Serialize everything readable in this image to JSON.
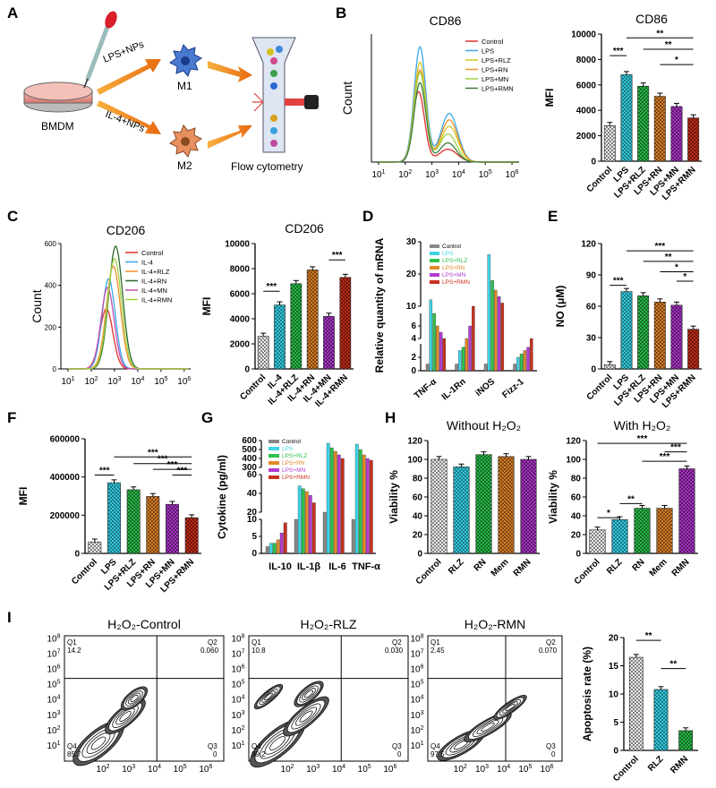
{
  "panels": {
    "A": "A",
    "B": "B",
    "C": "C",
    "D": "D",
    "E": "E",
    "F": "F",
    "G": "G",
    "H": "H",
    "I": "I"
  },
  "schematic": {
    "source": "BMDM",
    "route1": "LPS+NPs",
    "route2": "IL-4+NPs",
    "cell1": "M1",
    "cell2": "M2",
    "readout": "Flow cytometry"
  },
  "colors": {
    "control": "#888888",
    "lps": "#3fd4e6",
    "rlz": "#2ec24e",
    "rn": "#e08a2a",
    "mn": "#b43cd0",
    "rmn": "#c8321e",
    "flowRed": "#e0302a",
    "flowBlue": "#3aa6e8",
    "flowYellow": "#d6c820",
    "flowOrange": "#f0902a",
    "flowGreen": "#3a9a3a",
    "flowLime": "#a0d040"
  },
  "chart_data": [
    {
      "id": "B-hist",
      "type": "line",
      "title": "CD86",
      "ylabel": "Count",
      "x_ticks": [
        "10^1",
        "10^2",
        "10^3",
        "10^4",
        "10^5",
        "10^6"
      ],
      "series": [
        {
          "name": "Control"
        },
        {
          "name": "LPS"
        },
        {
          "name": "LPS+RLZ"
        },
        {
          "name": "LPS+RN"
        },
        {
          "name": "LPS+MN"
        },
        {
          "name": "LPS+RMN"
        }
      ]
    },
    {
      "id": "B-bar",
      "type": "bar",
      "title": "CD86",
      "ylabel": "MFI",
      "ylim": [
        0,
        10000
      ],
      "y_ticks": [
        "0",
        "2000",
        "4000",
        "6000",
        "8000",
        "10000"
      ],
      "categories": [
        "Control",
        "LPS",
        "LPS+RLZ",
        "LPS+RN",
        "LPS+MN",
        "LPS+RMN"
      ],
      "values": [
        2800,
        6800,
        5900,
        5100,
        4300,
        3400
      ],
      "sig": [
        {
          "label": "***"
        },
        {
          "label": "**"
        },
        {
          "label": "**"
        },
        {
          "label": "*"
        }
      ]
    },
    {
      "id": "C-hist",
      "type": "line",
      "title": "CD206",
      "ylabel": "Count",
      "y_ticks": [
        "0",
        "200",
        "400",
        "600"
      ],
      "x_ticks": [
        "10^1",
        "10^2",
        "10^3",
        "10^4",
        "10^5",
        "10^6"
      ],
      "series": [
        {
          "name": "Control"
        },
        {
          "name": "IL-4"
        },
        {
          "name": "IL-4+RLZ"
        },
        {
          "name": "IL-4+RN"
        },
        {
          "name": "IL-4+MN"
        },
        {
          "name": "IL-4+RMN"
        }
      ]
    },
    {
      "id": "C-bar",
      "type": "bar",
      "title": "CD206",
      "ylabel": "MFI",
      "ylim": [
        0,
        10000
      ],
      "y_ticks": [
        "0",
        "2000",
        "4000",
        "6000",
        "8000",
        "10000"
      ],
      "categories": [
        "Control",
        "IL-4",
        "IL-4+RLZ",
        "IL-4+RN",
        "IL-4+MN",
        "IL-4+RMN"
      ],
      "values": [
        2600,
        5100,
        6800,
        7900,
        4200,
        7300
      ],
      "sig": [
        {
          "label": "***"
        },
        {
          "label": "***"
        }
      ]
    },
    {
      "id": "D",
      "type": "bar",
      "ylabel": "Relative quantity of mRNA",
      "categories": [
        "TNF-α",
        "IL-1Rn",
        "iNOS",
        "Fizz-1"
      ],
      "series": [
        {
          "name": "Control"
        },
        {
          "name": "LPS"
        },
        {
          "name": "LPS+RLZ"
        },
        {
          "name": "LPS+RN"
        },
        {
          "name": "LPS+MN"
        },
        {
          "name": "LPS+RMN"
        }
      ],
      "y_ticks": [
        "0",
        "2",
        "4",
        "6",
        "10",
        "20",
        "30"
      ]
    },
    {
      "id": "E",
      "type": "bar",
      "ylabel": "NO (μM)",
      "ylim": [
        0,
        120
      ],
      "y_ticks": [
        "0",
        "30",
        "60",
        "90",
        "120"
      ],
      "categories": [
        "Control",
        "LPS",
        "LPS+RLZ",
        "LPS+RN",
        "LPS+MN",
        "LPS+RMN"
      ],
      "values": [
        4,
        74,
        70,
        64,
        61,
        38
      ],
      "sig": [
        {
          "label": "***"
        },
        {
          "label": "***"
        },
        {
          "label": "**"
        },
        {
          "label": "*"
        },
        {
          "label": "*"
        }
      ]
    },
    {
      "id": "F",
      "type": "bar",
      "ylabel": "MFI",
      "ylim": [
        0,
        600000
      ],
      "y_ticks": [
        "0",
        "200000",
        "400000",
        "600000"
      ],
      "categories": [
        "Control",
        "LPS",
        "LPS+RLZ",
        "LPS+RN",
        "LPS+MN",
        "LPS+RMN"
      ],
      "values": [
        60000,
        370000,
        333000,
        298000,
        257000,
        187000
      ],
      "sig": [
        {
          "label": "***"
        },
        {
          "label": "***"
        },
        {
          "label": "***"
        },
        {
          "label": "***"
        },
        {
          "label": "***"
        }
      ]
    },
    {
      "id": "G",
      "type": "bar",
      "ylabel": "Cytokine (pg/ml)",
      "categories": [
        "IL-10",
        "IL-1β",
        "IL-6",
        "TNF-α"
      ],
      "series": [
        {
          "name": "Control"
        },
        {
          "name": "LPS"
        },
        {
          "name": "LPS+RLZ"
        },
        {
          "name": "LPS+RN"
        },
        {
          "name": "LPS+MN"
        },
        {
          "name": "LPS+RMN"
        }
      ],
      "y_ticks": [
        "0",
        "5",
        "10",
        "20",
        "40",
        "60",
        "300",
        "400",
        "500",
        "600"
      ]
    },
    {
      "id": "H-left",
      "type": "bar",
      "title": "Without H₂O₂",
      "ylabel": "Viability %",
      "ylim": [
        0,
        120
      ],
      "y_ticks": [
        "0",
        "20",
        "40",
        "60",
        "80",
        "100",
        "120"
      ],
      "categories": [
        "Control",
        "RLZ",
        "RN",
        "Mem",
        "RMN"
      ],
      "values": [
        100,
        92,
        105,
        103,
        100
      ]
    },
    {
      "id": "H-right",
      "type": "bar",
      "title": "With H₂O₂",
      "ylabel": "Viability %",
      "ylim": [
        0,
        120
      ],
      "y_ticks": [
        "0",
        "20",
        "40",
        "60",
        "80",
        "100",
        "120"
      ],
      "categories": [
        "Control",
        "RLZ",
        "RN",
        "Mem",
        "RMN"
      ],
      "values": [
        25,
        36,
        48,
        48,
        90
      ],
      "sig": [
        {
          "label": "*"
        },
        {
          "label": "**"
        },
        {
          "label": "***"
        },
        {
          "label": "***"
        },
        {
          "label": "***"
        }
      ]
    },
    {
      "id": "I-bar",
      "type": "bar",
      "ylabel": "Apoptosis rate (%)",
      "ylim": [
        0,
        20
      ],
      "y_ticks": [
        "0",
        "5",
        "10",
        "15",
        "20"
      ],
      "categories": [
        "Control",
        "RLZ",
        "RMN"
      ],
      "values": [
        16.5,
        10.8,
        3.5
      ],
      "sig": [
        {
          "label": "**"
        },
        {
          "label": "**"
        }
      ]
    }
  ],
  "flow_plots": [
    {
      "title": "H₂O₂-Control",
      "q1": "Q1",
      "q1v": "14.2",
      "q2": "Q2",
      "q2v": "0.060",
      "q3": "Q3",
      "q3v": "0",
      "q4": "Q4",
      "q4v": "85.7"
    },
    {
      "title": "H₂O₂-RLZ",
      "q1": "Q1",
      "q1v": "10.8",
      "q2": "Q2",
      "q2v": "0.030",
      "q3": "Q3",
      "q3v": "0",
      "q4": "Q4",
      "q4v": "89.2"
    },
    {
      "title": "H₂O₂-RMN",
      "q1": "Q1",
      "q1v": "2.45",
      "q2": "Q2",
      "q2v": "0.070",
      "q3": "Q3",
      "q3v": "0",
      "q4": "Q4",
      "q4v": "97.5"
    }
  ],
  "flow_axis_ticks": [
    "10^1",
    "10^2",
    "10^3",
    "10^4",
    "10^5",
    "10^6",
    "10^7",
    "10^8"
  ]
}
